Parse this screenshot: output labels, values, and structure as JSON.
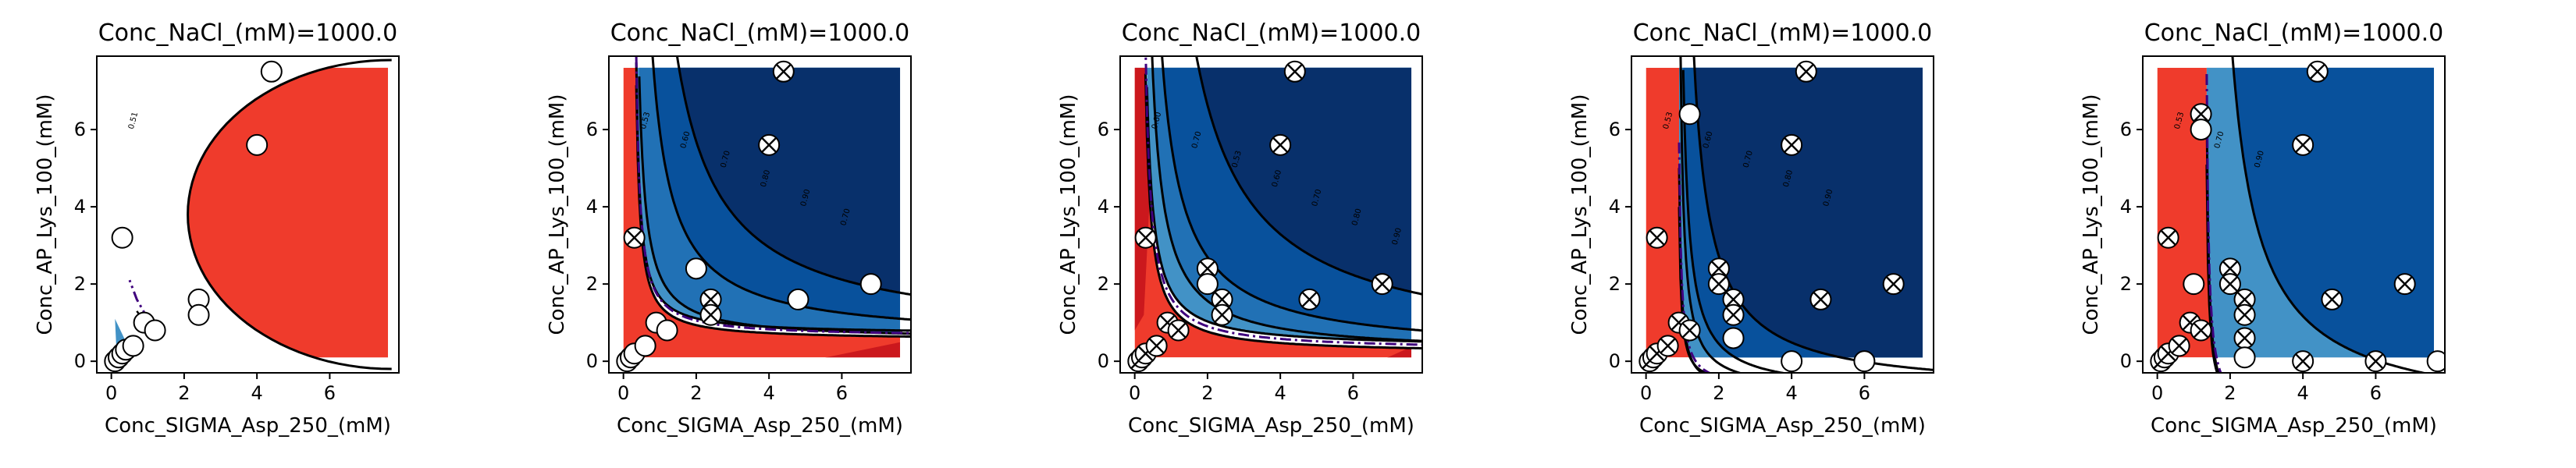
{
  "figure": {
    "colors": {
      "red": "#ef3b2c",
      "dark_red": "#cb181d",
      "light_blue": "#4292c6",
      "mid_blue": "#2171b5",
      "dark_blue": "#08519c",
      "darkest_blue": "#08306b",
      "dashdot": "#3f007d",
      "contour": "#000000"
    }
  },
  "chart_data": [
    {
      "type": "contour",
      "title": "Conc_NaCl_(mM)=1000.0",
      "xlabel": "Conc_SIGMA_Asp_250_(mM)",
      "ylabel": "Conc_AP_Lys_100_(mM)",
      "xlim": [
        -0.4,
        7.9
      ],
      "ylim": [
        -0.3,
        7.9
      ],
      "xticks": [
        "0",
        "2",
        "4",
        "6"
      ],
      "yticks": [
        "0",
        "2",
        "4",
        "6"
      ],
      "contour_labels": [
        "0.51"
      ],
      "points": [
        {
          "x": 0.3,
          "y": 3.2,
          "marker": "open"
        },
        {
          "x": 4.4,
          "y": 7.5,
          "marker": "open"
        },
        {
          "x": 4.0,
          "y": 5.6,
          "marker": "open"
        },
        {
          "x": 2.4,
          "y": 1.6,
          "marker": "open"
        },
        {
          "x": 2.4,
          "y": 1.2,
          "marker": "open"
        },
        {
          "x": 0.9,
          "y": 1.0,
          "marker": "open"
        },
        {
          "x": 1.2,
          "y": 0.8,
          "marker": "open"
        },
        {
          "x": 0.1,
          "y": 0.0,
          "marker": "open"
        },
        {
          "x": 0.2,
          "y": 0.1,
          "marker": "open"
        },
        {
          "x": 0.3,
          "y": 0.2,
          "marker": "open"
        },
        {
          "x": 0.4,
          "y": 0.3,
          "marker": "open"
        },
        {
          "x": 0.6,
          "y": 0.4,
          "marker": "open"
        }
      ]
    },
    {
      "type": "contour",
      "title": "Conc_NaCl_(mM)=1000.0",
      "xlabel": "Conc_SIGMA_Asp_250_(mM)",
      "ylabel": "Conc_AP_Lys_100_(mM)",
      "xlim": [
        -0.4,
        7.9
      ],
      "ylim": [
        -0.3,
        7.9
      ],
      "xticks": [
        "0",
        "2",
        "4",
        "6"
      ],
      "yticks": [
        "0",
        "2",
        "4",
        "6"
      ],
      "contour_labels": [
        "0.53",
        "0.60",
        "0.70",
        "0.80",
        "0.90",
        "0.70"
      ],
      "points": [
        {
          "x": 4.4,
          "y": 7.5,
          "marker": "x"
        },
        {
          "x": 4.0,
          "y": 5.6,
          "marker": "x"
        },
        {
          "x": 0.3,
          "y": 3.2,
          "marker": "x"
        },
        {
          "x": 2.0,
          "y": 2.4,
          "marker": "open"
        },
        {
          "x": 2.4,
          "y": 1.6,
          "marker": "x"
        },
        {
          "x": 2.4,
          "y": 1.2,
          "marker": "x"
        },
        {
          "x": 4.8,
          "y": 1.6,
          "marker": "open"
        },
        {
          "x": 6.8,
          "y": 2.0,
          "marker": "open"
        },
        {
          "x": 0.9,
          "y": 1.0,
          "marker": "open"
        },
        {
          "x": 1.2,
          "y": 0.8,
          "marker": "open"
        },
        {
          "x": 0.1,
          "y": 0.0,
          "marker": "open"
        },
        {
          "x": 0.2,
          "y": 0.1,
          "marker": "open"
        },
        {
          "x": 0.3,
          "y": 0.2,
          "marker": "open"
        },
        {
          "x": 0.6,
          "y": 0.4,
          "marker": "open"
        }
      ]
    },
    {
      "type": "contour",
      "title": "Conc_NaCl_(mM)=1000.0",
      "xlabel": "Conc_SIGMA_Asp_250_(mM)",
      "ylabel": "Conc_AP_Lys_100_(mM)",
      "xlim": [
        -0.4,
        7.9
      ],
      "ylim": [
        -0.3,
        7.9
      ],
      "xticks": [
        "0",
        "2",
        "4",
        "6"
      ],
      "yticks": [
        "0",
        "2",
        "4",
        "6"
      ],
      "contour_labels": [
        "0.60",
        "0.70",
        "0.53",
        "0.60",
        "0.70",
        "0.80",
        "0.90",
        "0.30"
      ],
      "points": [
        {
          "x": 4.4,
          "y": 7.5,
          "marker": "x"
        },
        {
          "x": 4.0,
          "y": 5.6,
          "marker": "x"
        },
        {
          "x": 0.3,
          "y": 3.2,
          "marker": "x"
        },
        {
          "x": 2.0,
          "y": 2.4,
          "marker": "x"
        },
        {
          "x": 2.0,
          "y": 2.0,
          "marker": "open"
        },
        {
          "x": 2.4,
          "y": 1.6,
          "marker": "x"
        },
        {
          "x": 2.4,
          "y": 1.2,
          "marker": "x"
        },
        {
          "x": 4.8,
          "y": 1.6,
          "marker": "x"
        },
        {
          "x": 6.8,
          "y": 2.0,
          "marker": "x"
        },
        {
          "x": 0.9,
          "y": 1.0,
          "marker": "x"
        },
        {
          "x": 1.2,
          "y": 0.8,
          "marker": "x"
        },
        {
          "x": 0.1,
          "y": 0.0,
          "marker": "x"
        },
        {
          "x": 0.2,
          "y": 0.1,
          "marker": "x"
        },
        {
          "x": 0.3,
          "y": 0.2,
          "marker": "x"
        },
        {
          "x": 0.6,
          "y": 0.4,
          "marker": "x"
        }
      ]
    },
    {
      "type": "contour",
      "title": "Conc_NaCl_(mM)=1000.0",
      "xlabel": "Conc_SIGMA_Asp_250_(mM)",
      "ylabel": "Conc_AP_Lys_100_(mM)",
      "xlim": [
        -0.4,
        7.9
      ],
      "ylim": [
        -0.3,
        7.9
      ],
      "xticks": [
        "0",
        "2",
        "4",
        "6"
      ],
      "yticks": [
        "0",
        "2",
        "4",
        "6"
      ],
      "contour_labels": [
        "0.53",
        "0.60",
        "0.70",
        "0.80",
        "0.90"
      ],
      "points": [
        {
          "x": 1.2,
          "y": 6.4,
          "marker": "open"
        },
        {
          "x": 0.3,
          "y": 3.2,
          "marker": "x"
        },
        {
          "x": 4.4,
          "y": 7.5,
          "marker": "x"
        },
        {
          "x": 4.0,
          "y": 5.6,
          "marker": "x"
        },
        {
          "x": 2.0,
          "y": 2.4,
          "marker": "x"
        },
        {
          "x": 2.0,
          "y": 2.0,
          "marker": "x"
        },
        {
          "x": 2.4,
          "y": 1.6,
          "marker": "x"
        },
        {
          "x": 2.4,
          "y": 1.2,
          "marker": "x"
        },
        {
          "x": 2.4,
          "y": 0.6,
          "marker": "open"
        },
        {
          "x": 4.8,
          "y": 1.6,
          "marker": "x"
        },
        {
          "x": 6.8,
          "y": 2.0,
          "marker": "x"
        },
        {
          "x": 4.0,
          "y": 0.0,
          "marker": "open"
        },
        {
          "x": 6.0,
          "y": 0.0,
          "marker": "open"
        },
        {
          "x": 0.9,
          "y": 1.0,
          "marker": "x"
        },
        {
          "x": 1.2,
          "y": 0.8,
          "marker": "x"
        },
        {
          "x": 0.1,
          "y": 0.0,
          "marker": "x"
        },
        {
          "x": 0.2,
          "y": 0.1,
          "marker": "x"
        },
        {
          "x": 0.3,
          "y": 0.2,
          "marker": "x"
        },
        {
          "x": 0.6,
          "y": 0.4,
          "marker": "x"
        }
      ]
    },
    {
      "type": "contour",
      "title": "Conc_NaCl_(mM)=1000.0",
      "xlabel": "Conc_SIGMA_Asp_250_(mM)",
      "ylabel": "Conc_AP_Lys_100_(mM)",
      "xlim": [
        -0.4,
        7.9
      ],
      "ylim": [
        -0.3,
        7.9
      ],
      "xticks": [
        "0",
        "2",
        "4",
        "6"
      ],
      "yticks": [
        "0",
        "2",
        "4",
        "6"
      ],
      "contour_labels": [
        "0.53",
        "0.70",
        "0.90"
      ],
      "points": [
        {
          "x": 1.2,
          "y": 6.4,
          "marker": "x"
        },
        {
          "x": 1.2,
          "y": 6.0,
          "marker": "open"
        },
        {
          "x": 4.4,
          "y": 7.5,
          "marker": "x"
        },
        {
          "x": 4.0,
          "y": 5.6,
          "marker": "x"
        },
        {
          "x": 0.3,
          "y": 3.2,
          "marker": "x"
        },
        {
          "x": 1.0,
          "y": 2.0,
          "marker": "open"
        },
        {
          "x": 2.0,
          "y": 2.4,
          "marker": "x"
        },
        {
          "x": 2.0,
          "y": 2.0,
          "marker": "x"
        },
        {
          "x": 2.4,
          "y": 1.6,
          "marker": "x"
        },
        {
          "x": 2.4,
          "y": 1.2,
          "marker": "x"
        },
        {
          "x": 2.4,
          "y": 0.6,
          "marker": "x"
        },
        {
          "x": 2.4,
          "y": 0.1,
          "marker": "open"
        },
        {
          "x": 4.8,
          "y": 1.6,
          "marker": "x"
        },
        {
          "x": 6.8,
          "y": 2.0,
          "marker": "x"
        },
        {
          "x": 4.0,
          "y": 0.0,
          "marker": "x"
        },
        {
          "x": 6.0,
          "y": 0.0,
          "marker": "x"
        },
        {
          "x": 7.7,
          "y": 0.0,
          "marker": "open"
        },
        {
          "x": 0.9,
          "y": 1.0,
          "marker": "x"
        },
        {
          "x": 1.2,
          "y": 0.8,
          "marker": "x"
        },
        {
          "x": 0.1,
          "y": 0.0,
          "marker": "x"
        },
        {
          "x": 0.2,
          "y": 0.1,
          "marker": "x"
        },
        {
          "x": 0.3,
          "y": 0.2,
          "marker": "x"
        },
        {
          "x": 0.6,
          "y": 0.4,
          "marker": "x"
        }
      ]
    }
  ]
}
